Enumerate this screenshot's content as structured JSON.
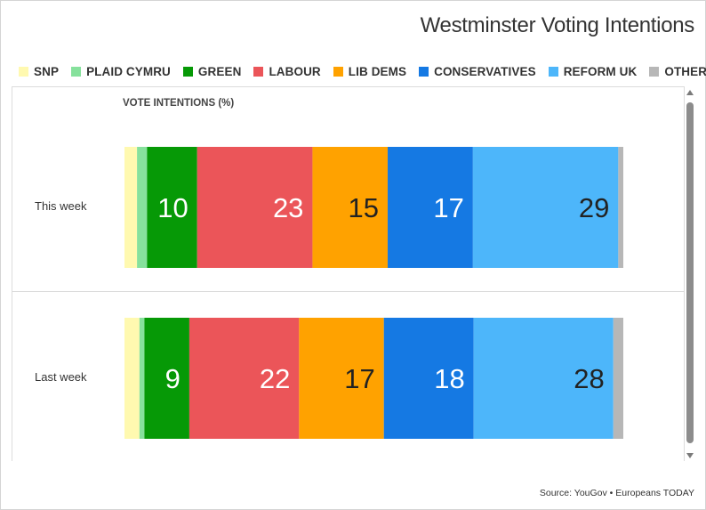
{
  "title": "Westminster Voting Intentions",
  "source": "Source: YouGov • Europeans TODAY",
  "chart_data": {
    "type": "bar",
    "orientation": "horizontal-stacked",
    "axis_title": "VOTE INTENTIONS (%)",
    "categories": [
      "This week",
      "Last week"
    ],
    "series": [
      {
        "name": "SNP",
        "color": "#fff9b0",
        "values": [
          2.5,
          3
        ],
        "label_color": "#222222"
      },
      {
        "name": "PLAID CYMRU",
        "color": "#86e19c",
        "values": [
          2,
          1
        ],
        "label_color": "#222222"
      },
      {
        "name": "GREEN",
        "color": "#069906",
        "values": [
          10,
          9
        ],
        "label_color": "#ffffff"
      },
      {
        "name": "LABOUR",
        "color": "#eb5559",
        "values": [
          23,
          22
        ],
        "label_color": "#ffffff"
      },
      {
        "name": "LIB DEMS",
        "color": "#ffa200",
        "values": [
          15,
          17
        ],
        "label_color": "#222222"
      },
      {
        "name": "CONSERVATIVES",
        "color": "#1579e3",
        "values": [
          17,
          18
        ],
        "label_color": "#ffffff"
      },
      {
        "name": "REFORM UK",
        "color": "#4db6fa",
        "values": [
          29,
          28
        ],
        "label_color": "#222222"
      },
      {
        "name": "OTHERS",
        "color": "#b7b7b7",
        "values": [
          1,
          2
        ],
        "label_color": "#222222"
      }
    ],
    "data_labels": [
      [
        null,
        null,
        "10",
        "23",
        "15",
        "17",
        "29",
        null
      ],
      [
        null,
        null,
        "9",
        "22",
        "17",
        "18",
        "28",
        null
      ]
    ],
    "legend_position": "top"
  },
  "scrollbar": {
    "up_icon": "scroll-up-arrow-icon",
    "down_icon": "scroll-down-arrow-icon"
  }
}
